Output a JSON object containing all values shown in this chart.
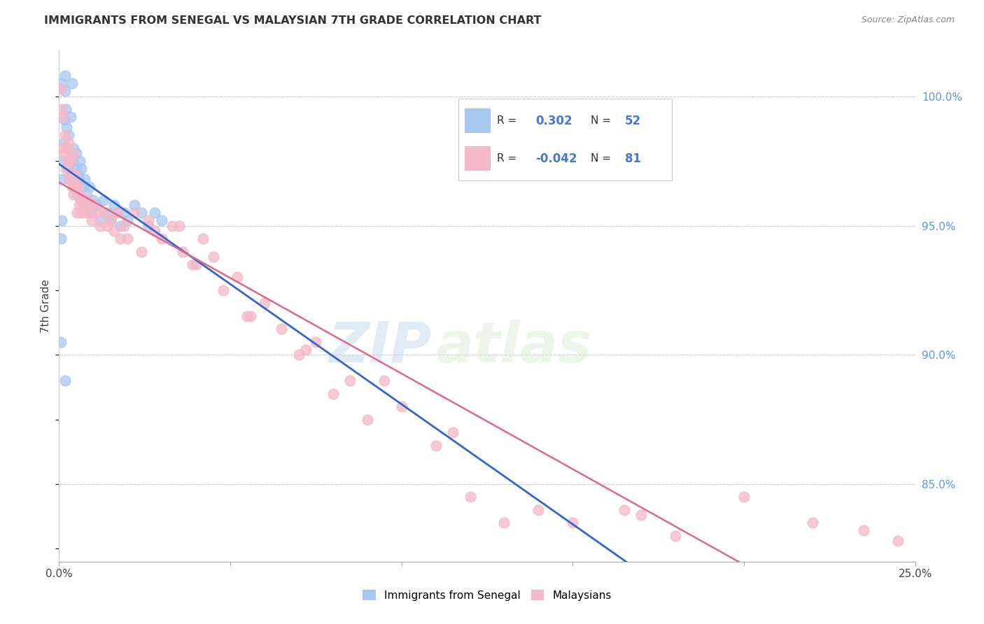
{
  "title": "IMMIGRANTS FROM SENEGAL VS MALAYSIAN 7TH GRADE CORRELATION CHART",
  "source": "Source: ZipAtlas.com",
  "ylabel": "7th Grade",
  "right_yticks": [
    100.0,
    95.0,
    90.0,
    85.0
  ],
  "xlim": [
    0.0,
    25.0
  ],
  "ylim": [
    82.0,
    101.8
  ],
  "blue_R": 0.302,
  "blue_N": 52,
  "pink_R": -0.042,
  "pink_N": 81,
  "blue_color": "#a8c8f0",
  "pink_color": "#f5b8c8",
  "blue_line_color": "#3366cc",
  "pink_line_color": "#e06888",
  "watermark_zip": "ZIP",
  "watermark_atlas": "atlas",
  "legend_label_blue": "Immigrants from Senegal",
  "legend_label_pink": "Malaysians",
  "blue_points_x": [
    0.05,
    0.08,
    0.1,
    0.12,
    0.13,
    0.15,
    0.17,
    0.18,
    0.2,
    0.22,
    0.25,
    0.27,
    0.3,
    0.33,
    0.35,
    0.38,
    0.4,
    0.42,
    0.45,
    0.48,
    0.5,
    0.53,
    0.55,
    0.58,
    0.6,
    0.63,
    0.65,
    0.7,
    0.75,
    0.8,
    0.85,
    0.9,
    0.95,
    1.0,
    1.1,
    1.2,
    1.3,
    1.4,
    1.5,
    1.6,
    1.7,
    1.8,
    1.9,
    2.0,
    2.2,
    2.4,
    2.6,
    2.8,
    3.0,
    0.08,
    0.06,
    0.18
  ],
  "blue_points_y": [
    94.5,
    95.2,
    96.8,
    97.5,
    98.2,
    99.1,
    100.2,
    100.8,
    99.5,
    98.8,
    97.2,
    98.5,
    96.8,
    97.8,
    99.2,
    100.5,
    97.5,
    98.0,
    96.5,
    97.2,
    97.8,
    96.2,
    97.0,
    96.8,
    97.5,
    96.0,
    97.2,
    96.5,
    96.8,
    96.2,
    95.8,
    96.5,
    95.5,
    96.0,
    95.8,
    95.2,
    96.0,
    95.5,
    95.2,
    95.8,
    95.5,
    95.0,
    95.5,
    95.2,
    95.8,
    95.5,
    95.0,
    95.5,
    95.2,
    100.5,
    90.5,
    89.0
  ],
  "pink_points_x": [
    0.05,
    0.08,
    0.1,
    0.12,
    0.15,
    0.18,
    0.2,
    0.22,
    0.25,
    0.28,
    0.3,
    0.33,
    0.35,
    0.38,
    0.4,
    0.43,
    0.45,
    0.48,
    0.5,
    0.53,
    0.55,
    0.58,
    0.6,
    0.63,
    0.65,
    0.7,
    0.75,
    0.8,
    0.85,
    0.9,
    0.95,
    1.0,
    1.1,
    1.2,
    1.3,
    1.4,
    1.5,
    1.6,
    1.7,
    1.8,
    1.9,
    2.0,
    2.2,
    2.4,
    2.6,
    2.8,
    3.0,
    3.3,
    3.6,
    3.9,
    4.2,
    4.5,
    4.8,
    5.2,
    5.6,
    6.0,
    6.5,
    7.0,
    7.5,
    8.0,
    8.5,
    9.0,
    10.0,
    11.0,
    12.0,
    13.0,
    14.0,
    15.0,
    16.5,
    18.0,
    20.0,
    22.0,
    24.5,
    5.5,
    7.2,
    9.5,
    11.5,
    4.0,
    17.0,
    23.5,
    3.5
  ],
  "pink_points_y": [
    100.3,
    99.5,
    98.0,
    99.2,
    97.8,
    98.5,
    97.2,
    98.0,
    97.5,
    98.2,
    96.8,
    97.5,
    97.0,
    96.5,
    97.8,
    96.2,
    97.0,
    96.5,
    96.8,
    95.5,
    96.5,
    95.8,
    96.2,
    95.5,
    96.0,
    95.8,
    95.5,
    95.8,
    96.0,
    95.5,
    95.2,
    95.8,
    95.5,
    95.0,
    95.5,
    95.0,
    95.2,
    94.8,
    95.5,
    94.5,
    95.0,
    94.5,
    95.5,
    94.0,
    95.2,
    94.8,
    94.5,
    95.0,
    94.0,
    93.5,
    94.5,
    93.8,
    92.5,
    93.0,
    91.5,
    92.0,
    91.0,
    90.0,
    90.5,
    88.5,
    89.0,
    87.5,
    88.0,
    86.5,
    84.5,
    83.5,
    84.0,
    83.5,
    84.0,
    83.0,
    84.5,
    83.5,
    82.8,
    91.5,
    90.2,
    89.0,
    87.0,
    93.5,
    83.8,
    83.2,
    95.0
  ]
}
